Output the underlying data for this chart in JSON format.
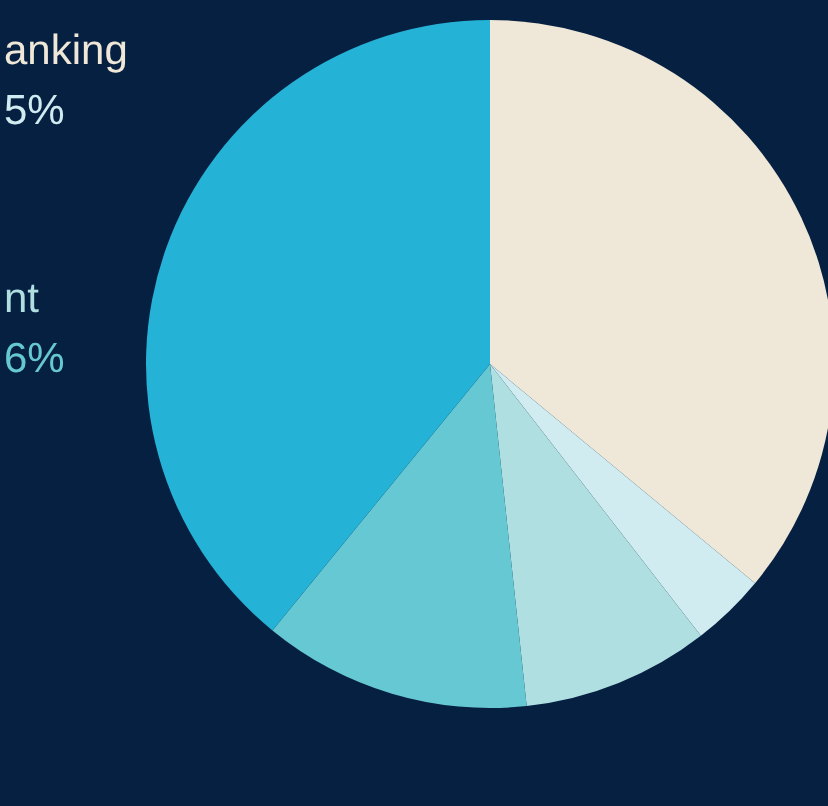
{
  "chart_data": {
    "type": "pie",
    "categories": [
      null,
      null,
      null,
      null,
      null
    ],
    "values": [
      36,
      3.5,
      8.8,
      12.6,
      39.1
    ],
    "colors": [
      "#efe8d8",
      "#d0ecf0",
      "#b0dfe2",
      "#66c8d3",
      "#24b2d6"
    ],
    "annotations": [
      "anking",
      "5%",
      "nt",
      "6%"
    ]
  }
}
